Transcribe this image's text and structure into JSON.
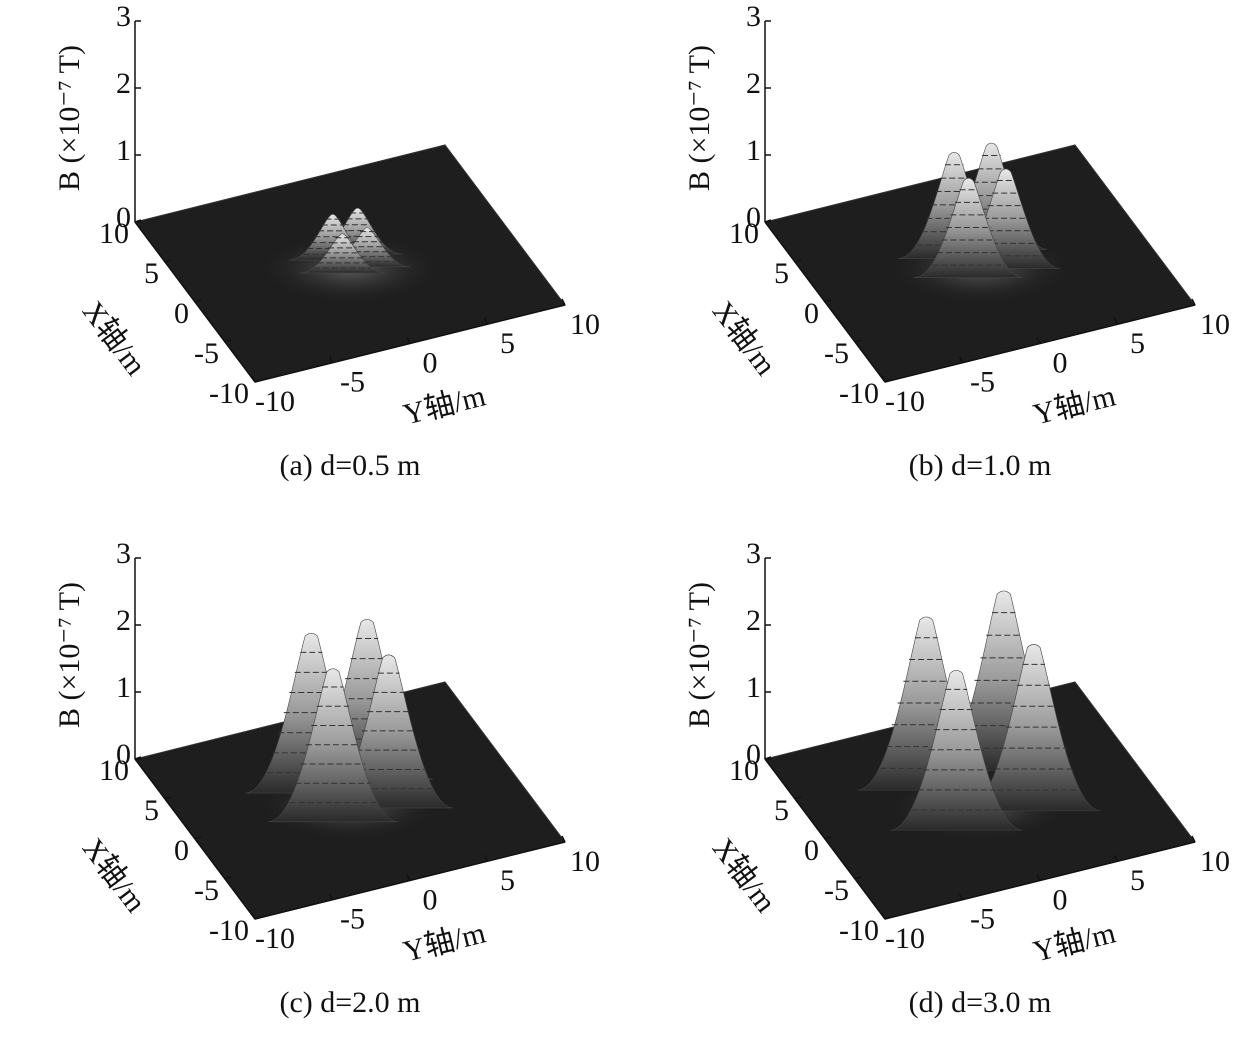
{
  "chart_data": [
    {
      "type": "surface",
      "caption": "(a) d=0.5 m",
      "zlabel": "B (×10⁻⁷ T)",
      "xlabel": "X轴/m",
      "ylabel": "Y轴/m",
      "xlim": [
        -10,
        10
      ],
      "ylim": [
        -10,
        10
      ],
      "zlim": [
        0,
        3
      ],
      "xticks": [
        -10,
        -5,
        0,
        5,
        10
      ],
      "yticks": [
        -10,
        -5,
        0,
        5,
        10
      ],
      "zticks": [
        0,
        1,
        2,
        3
      ],
      "peaks": {
        "x": [
          0.8,
          0.8,
          -0.8,
          -0.8
        ],
        "y": [
          -0.8,
          0.8,
          -0.8,
          0.8
        ],
        "z": [
          0.7,
          0.7,
          0.6,
          0.6
        ]
      }
    },
    {
      "type": "surface",
      "caption": "(b) d=1.0 m",
      "zlabel": "B (×10⁻⁷ T)",
      "xlabel": "X轴/m",
      "ylabel": "Y轴/m",
      "xlim": [
        -10,
        10
      ],
      "ylim": [
        -10,
        10
      ],
      "zlim": [
        0,
        3
      ],
      "xticks": [
        -10,
        -5,
        0,
        5,
        10
      ],
      "yticks": [
        -10,
        -5,
        0,
        5,
        10
      ],
      "zticks": [
        0,
        1,
        2,
        3
      ],
      "peaks": {
        "x": [
          1.2,
          1.2,
          -1.2,
          -1.2
        ],
        "y": [
          -1.2,
          1.2,
          -1.2,
          1.2
        ],
        "z": [
          1.6,
          1.6,
          1.5,
          1.5
        ]
      }
    },
    {
      "type": "surface",
      "caption": "(c) d=2.0 m",
      "zlabel": "B (×10⁻⁷ T)",
      "xlabel": "X轴/m",
      "ylabel": "Y轴/m",
      "xlim": [
        -10,
        10
      ],
      "ylim": [
        -10,
        10
      ],
      "zlim": [
        0,
        3
      ],
      "xticks": [
        -10,
        -5,
        0,
        5,
        10
      ],
      "yticks": [
        -10,
        -5,
        0,
        5,
        10
      ],
      "zticks": [
        0,
        1,
        2,
        3
      ],
      "peaks": {
        "x": [
          1.8,
          1.8,
          -1.8,
          -1.8
        ],
        "y": [
          -1.8,
          1.8,
          -1.8,
          1.8
        ],
        "z": [
          2.4,
          2.4,
          2.3,
          2.3
        ]
      }
    },
    {
      "type": "surface",
      "caption": "(d) d=3.0 m",
      "zlabel": "B (×10⁻⁷ T)",
      "xlabel": "X轴/m",
      "ylabel": "Y轴/m",
      "xlim": [
        -10,
        10
      ],
      "ylim": [
        -10,
        10
      ],
      "zlim": [
        0,
        3
      ],
      "xticks": [
        -10,
        -5,
        0,
        5,
        10
      ],
      "yticks": [
        -10,
        -5,
        0,
        5,
        10
      ],
      "zticks": [
        0,
        1,
        2,
        3
      ],
      "peaks": {
        "x": [
          2.5,
          2.5,
          -2.5,
          -2.5
        ],
        "y": [
          -2.5,
          2.5,
          -2.5,
          2.5
        ],
        "z": [
          2.6,
          2.7,
          2.4,
          2.5
        ]
      }
    }
  ]
}
